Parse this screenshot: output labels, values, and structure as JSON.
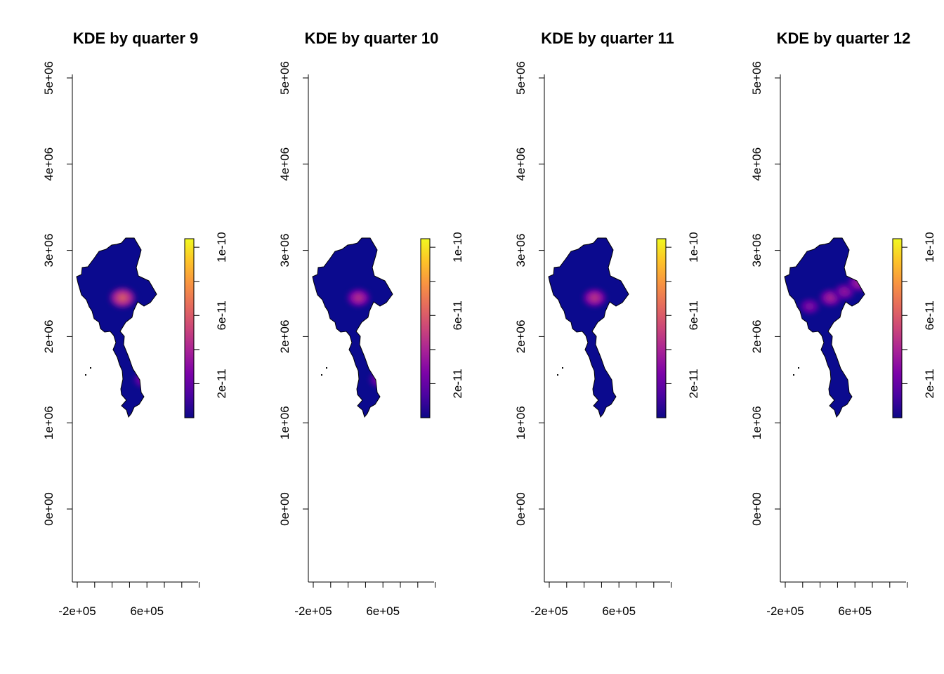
{
  "chart_data": [
    {
      "type": "heatmap",
      "title": "KDE by quarter 9",
      "xlabel": "",
      "ylabel": "",
      "x_ticks": [
        -200000,
        0,
        200000,
        400000,
        600000,
        800000,
        1000000,
        1200000
      ],
      "x_tick_labels": [
        "-2e+05",
        "",
        "",
        "",
        "6e+05",
        "",
        "",
        ""
      ],
      "y_ticks": [
        0,
        1000000,
        2000000,
        3000000,
        4000000,
        5000000
      ],
      "y_tick_labels": [
        "0e+00",
        "1e+06",
        "2e+06",
        "3e+06",
        "4e+06",
        "5e+06"
      ],
      "xlim": [
        -250000,
        1200000
      ],
      "ylim": [
        -850000,
        5080000
      ],
      "colorbar": {
        "range": [
          0,
          1.05e-10
        ],
        "ticks": [
          2e-11,
          6e-11,
          1e-10
        ],
        "tick_labels": [
          "2e-11",
          "6e-11",
          "1e-10"
        ],
        "palette": "plasma"
      },
      "hotspots": [
        {
          "x": 320000,
          "y": 2450000,
          "value": 6.5e-11
        },
        {
          "x": 560000,
          "y": 1500000,
          "value": 3e-11
        }
      ]
    },
    {
      "type": "heatmap",
      "title": "KDE by quarter 10",
      "xlabel": "",
      "ylabel": "",
      "x_ticks": [
        -200000,
        0,
        200000,
        400000,
        600000,
        800000,
        1000000,
        1200000
      ],
      "x_tick_labels": [
        "-2e+05",
        "",
        "",
        "",
        "6e+05",
        "",
        "",
        ""
      ],
      "y_ticks": [
        0,
        1000000,
        2000000,
        3000000,
        4000000,
        5000000
      ],
      "y_tick_labels": [
        "0e+00",
        "1e+06",
        "2e+06",
        "3e+06",
        "4e+06",
        "5e+06"
      ],
      "xlim": [
        -250000,
        1200000
      ],
      "ylim": [
        -850000,
        5080000
      ],
      "colorbar": {
        "range": [
          0,
          1.05e-10
        ],
        "ticks": [
          2e-11,
          6e-11,
          1e-10
        ],
        "tick_labels": [
          "2e-11",
          "6e-11",
          "1e-10"
        ],
        "palette": "plasma"
      },
      "hotspots": [
        {
          "x": 320000,
          "y": 2450000,
          "value": 4.8e-11
        },
        {
          "x": 560000,
          "y": 1500000,
          "value": 3.2e-11
        }
      ]
    },
    {
      "type": "heatmap",
      "title": "KDE by quarter 11",
      "xlabel": "",
      "ylabel": "",
      "x_ticks": [
        -200000,
        0,
        200000,
        400000,
        600000,
        800000,
        1000000,
        1200000
      ],
      "x_tick_labels": [
        "-2e+05",
        "",
        "",
        "",
        "6e+05",
        "",
        "",
        ""
      ],
      "y_ticks": [
        0,
        1000000,
        2000000,
        3000000,
        4000000,
        5000000
      ],
      "y_tick_labels": [
        "0e+00",
        "1e+06",
        "2e+06",
        "3e+06",
        "4e+06",
        "5e+06"
      ],
      "xlim": [
        -250000,
        1200000
      ],
      "ylim": [
        -850000,
        5080000
      ],
      "colorbar": {
        "range": [
          0,
          1.05e-10
        ],
        "ticks": [
          2e-11,
          6e-11,
          1e-10
        ],
        "tick_labels": [
          "2e-11",
          "6e-11",
          "1e-10"
        ],
        "palette": "plasma"
      },
      "hotspots": [
        {
          "x": 320000,
          "y": 2450000,
          "value": 5e-11
        }
      ]
    },
    {
      "type": "heatmap",
      "title": "KDE by quarter 12",
      "xlabel": "",
      "ylabel": "",
      "x_ticks": [
        -200000,
        0,
        200000,
        400000,
        600000,
        800000,
        1000000,
        1200000
      ],
      "x_tick_labels": [
        "-2e+05",
        "",
        "",
        "",
        "6e+05",
        "",
        "",
        ""
      ],
      "y_ticks": [
        0,
        1000000,
        2000000,
        3000000,
        4000000,
        5000000
      ],
      "y_tick_labels": [
        "0e+00",
        "1e+06",
        "2e+06",
        "3e+06",
        "4e+06",
        "5e+06"
      ],
      "xlim": [
        -250000,
        1200000
      ],
      "ylim": [
        -850000,
        5080000
      ],
      "colorbar": {
        "range": [
          0,
          1.05e-10
        ],
        "ticks": [
          2e-11,
          6e-11,
          1e-10
        ],
        "tick_labels": [
          "2e-11",
          "6e-11",
          "1e-10"
        ],
        "palette": "plasma"
      },
      "hotspots": [
        {
          "x": 320000,
          "y": 2450000,
          "value": 4.2e-11
        },
        {
          "x": 480000,
          "y": 2520000,
          "value": 3.5e-11
        },
        {
          "x": 640000,
          "y": 2620000,
          "value": 4e-11
        },
        {
          "x": 80000,
          "y": 2350000,
          "value": 3e-11
        }
      ]
    }
  ]
}
